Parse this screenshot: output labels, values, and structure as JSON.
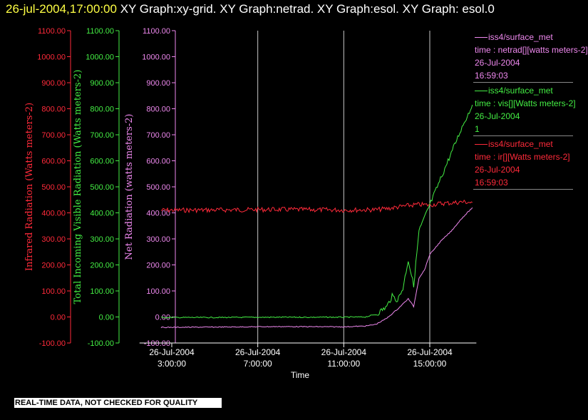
{
  "header": {
    "timestamp": "26-jul-2004,17:00:00",
    "title_rest": " XY Graph:xy-grid.  XY Graph:netrad.  XY Graph:esol.  XY Graph: esol.0"
  },
  "chart_data": {
    "type": "line",
    "xlabel": "Time",
    "x_axis_type": "time",
    "xlim": [
      "2004-07-26 01:30",
      "2004-07-26 17:10"
    ],
    "x_ticks": [
      {
        "value": "2004-07-26 03:00",
        "date": "26-Jul-2004",
        "time": "3:00:00"
      },
      {
        "value": "2004-07-26 07:00",
        "date": "26-Jul-2004",
        "time": "7:00:00"
      },
      {
        "value": "2004-07-26 11:00",
        "date": "26-Jul-2004",
        "time": "11:00:00"
      },
      {
        "value": "2004-07-26 15:00",
        "date": "26-Jul-2004",
        "time": "15:00:00"
      }
    ],
    "vertical_gridlines": [
      "2004-07-26 07:00",
      "2004-07-26 11:00",
      "2004-07-26 15:00"
    ],
    "y_axes": [
      {
        "label": "Infrared Radiation (Watts meters-2)",
        "color": "#ff2a3a",
        "ylim": [
          -100,
          1100
        ],
        "ticks": [
          "1100.00",
          "1000.00",
          "900.00",
          "800.00",
          "700.00",
          "600.00",
          "500.00",
          "400.00",
          "300.00",
          "200.00",
          "100.00",
          "0.00",
          "-100.00"
        ]
      },
      {
        "label": "Total Incoming Visible Radiation (Watts meters-2)",
        "color": "#44ee44",
        "ylim": [
          -100,
          1100
        ],
        "ticks": [
          "1100.00",
          "1000.00",
          "900.00",
          "800.00",
          "700.00",
          "600.00",
          "500.00",
          "400.00",
          "300.00",
          "200.00",
          "100.00",
          "0.00",
          "-100.00"
        ]
      },
      {
        "label": "Net Radiation (watts meters-2)",
        "color": "#ee88ee",
        "ylim": [
          -100,
          1100
        ],
        "ticks": [
          "1100.00",
          "1000.00",
          "900.00",
          "800.00",
          "700.00",
          "600.00",
          "500.00",
          "400.00",
          "300.00",
          "200.00",
          "100.00",
          "0.00",
          "-100.00"
        ]
      }
    ],
    "series": [
      {
        "key": "ir",
        "color": "#ff2a3a",
        "x": [
          "2004-07-26 02:30",
          "2004-07-26 05:00",
          "2004-07-26 08:00",
          "2004-07-26 11:00",
          "2004-07-26 12:30",
          "2004-07-26 13:00",
          "2004-07-26 13:30",
          "2004-07-26 14:00",
          "2004-07-26 14:30",
          "2004-07-26 15:00",
          "2004-07-26 15:30",
          "2004-07-26 16:00",
          "2004-07-26 16:30",
          "2004-07-26 16:59"
        ],
        "values": [
          410,
          411,
          413,
          411,
          412,
          416,
          422,
          428,
          432,
          430,
          436,
          438,
          442,
          440
        ]
      },
      {
        "key": "vis",
        "color": "#44ee44",
        "x": [
          "2004-07-26 02:30",
          "2004-07-26 05:00",
          "2004-07-26 08:00",
          "2004-07-26 11:00",
          "2004-07-26 12:00",
          "2004-07-26 12:30",
          "2004-07-26 13:00",
          "2004-07-26 13:15",
          "2004-07-26 13:30",
          "2004-07-26 13:45",
          "2004-07-26 14:00",
          "2004-07-26 14:15",
          "2004-07-26 14:30",
          "2004-07-26 14:45",
          "2004-07-26 15:00",
          "2004-07-26 15:30",
          "2004-07-26 16:00",
          "2004-07-26 16:30",
          "2004-07-26 16:59"
        ],
        "values": [
          -2,
          -2,
          -1,
          -1,
          0,
          10,
          40,
          80,
          65,
          110,
          220,
          120,
          330,
          380,
          430,
          530,
          630,
          730,
          815
        ]
      },
      {
        "key": "netrad",
        "color": "#ee88ee",
        "x": [
          "2004-07-26 02:30",
          "2004-07-26 05:00",
          "2004-07-26 08:00",
          "2004-07-26 11:00",
          "2004-07-26 12:00",
          "2004-07-26 12:30",
          "2004-07-26 13:00",
          "2004-07-26 13:30",
          "2004-07-26 14:00",
          "2004-07-26 14:15",
          "2004-07-26 14:30",
          "2004-07-26 14:45",
          "2004-07-26 15:00",
          "2004-07-26 15:30",
          "2004-07-26 16:00",
          "2004-07-26 16:30",
          "2004-07-26 16:59"
        ],
        "values": [
          -40,
          -39,
          -37,
          -38,
          -35,
          -28,
          -5,
          30,
          70,
          40,
          150,
          180,
          240,
          290,
          330,
          380,
          420
        ]
      }
    ]
  },
  "legend": [
    {
      "source": "iss4/surface_met",
      "desc": "time : netrad[][watts meters-2]",
      "date": "26-Jul-2004",
      "time": "16:59:03",
      "color": "#ee88ee"
    },
    {
      "source": "iss4/surface_met",
      "desc": "time : vis[][Watts meters-2]",
      "date": "26-Jul-2004",
      "time": "1",
      "color": "#44ee44"
    },
    {
      "source": "iss4/surface_met",
      "desc": "time : ir[][Watts meters-2]",
      "date": "26-Jul-2004",
      "time": "16:59:03",
      "color": "#ff2a3a"
    }
  ],
  "footer": {
    "note": "REAL-TIME DATA, NOT CHECKED FOR QUALITY"
  }
}
